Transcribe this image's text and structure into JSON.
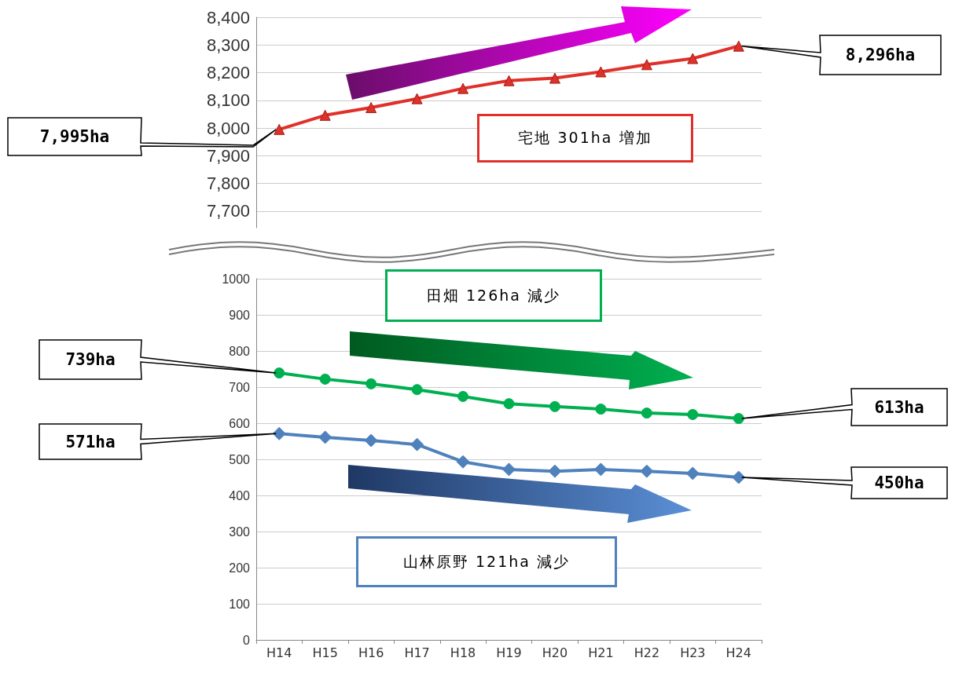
{
  "chart_data": [
    {
      "type": "line",
      "categories": [
        null,
        null,
        null,
        null,
        null,
        null,
        null,
        null,
        null,
        null,
        null
      ],
      "series": [
        {
          "color": "#e0302a",
          "marker": "triangle",
          "values": [
            7995,
            8046,
            8074,
            8106,
            8143,
            8171,
            8180,
            8203,
            8229,
            8251,
            8296
          ]
        }
      ],
      "ylim": [
        7640,
        8400
      ],
      "yticks": [
        {
          "value": 7700,
          "label": "7,700"
        },
        {
          "value": 7800,
          "label": "7,800"
        },
        {
          "value": 7900,
          "label": "7,900"
        },
        {
          "value": 8000,
          "label": "8,000"
        },
        {
          "value": 8100,
          "label": "8,100"
        },
        {
          "value": 8200,
          "label": "8,200"
        },
        {
          "value": 8300,
          "label": "8,300"
        },
        {
          "value": 8400,
          "label": "8,400"
        }
      ],
      "grid": "y",
      "tick_labels": "y",
      "annotations": [
        "7,995ha",
        "8,296ha",
        "宅地 301ha 増加"
      ]
    },
    {
      "type": "line",
      "categories": [
        "H14",
        "H15",
        "H16",
        "H17",
        "H18",
        "H19",
        "H20",
        "H21",
        "H22",
        "H23",
        "H24"
      ],
      "series": [
        {
          "color": "#00b050",
          "marker": "circle",
          "values": [
            739,
            722,
            709,
            693,
            674,
            654,
            646,
            639,
            628,
            624,
            613
          ]
        },
        {
          "color": "#4f81bd",
          "marker": "diamond",
          "values": [
            571,
            561,
            552,
            541,
            493,
            472,
            467,
            472,
            467,
            461,
            450
          ]
        }
      ],
      "ylim": [
        0,
        1000
      ],
      "yticks": [
        0,
        100,
        200,
        300,
        400,
        500,
        600,
        700,
        800,
        900,
        1000
      ],
      "grid": "y",
      "annotations": [
        "739ha",
        "613ha",
        "571ha",
        "450ha",
        "田畑 126ha 減少",
        "山林原野 121ha 減少"
      ]
    }
  ]
}
